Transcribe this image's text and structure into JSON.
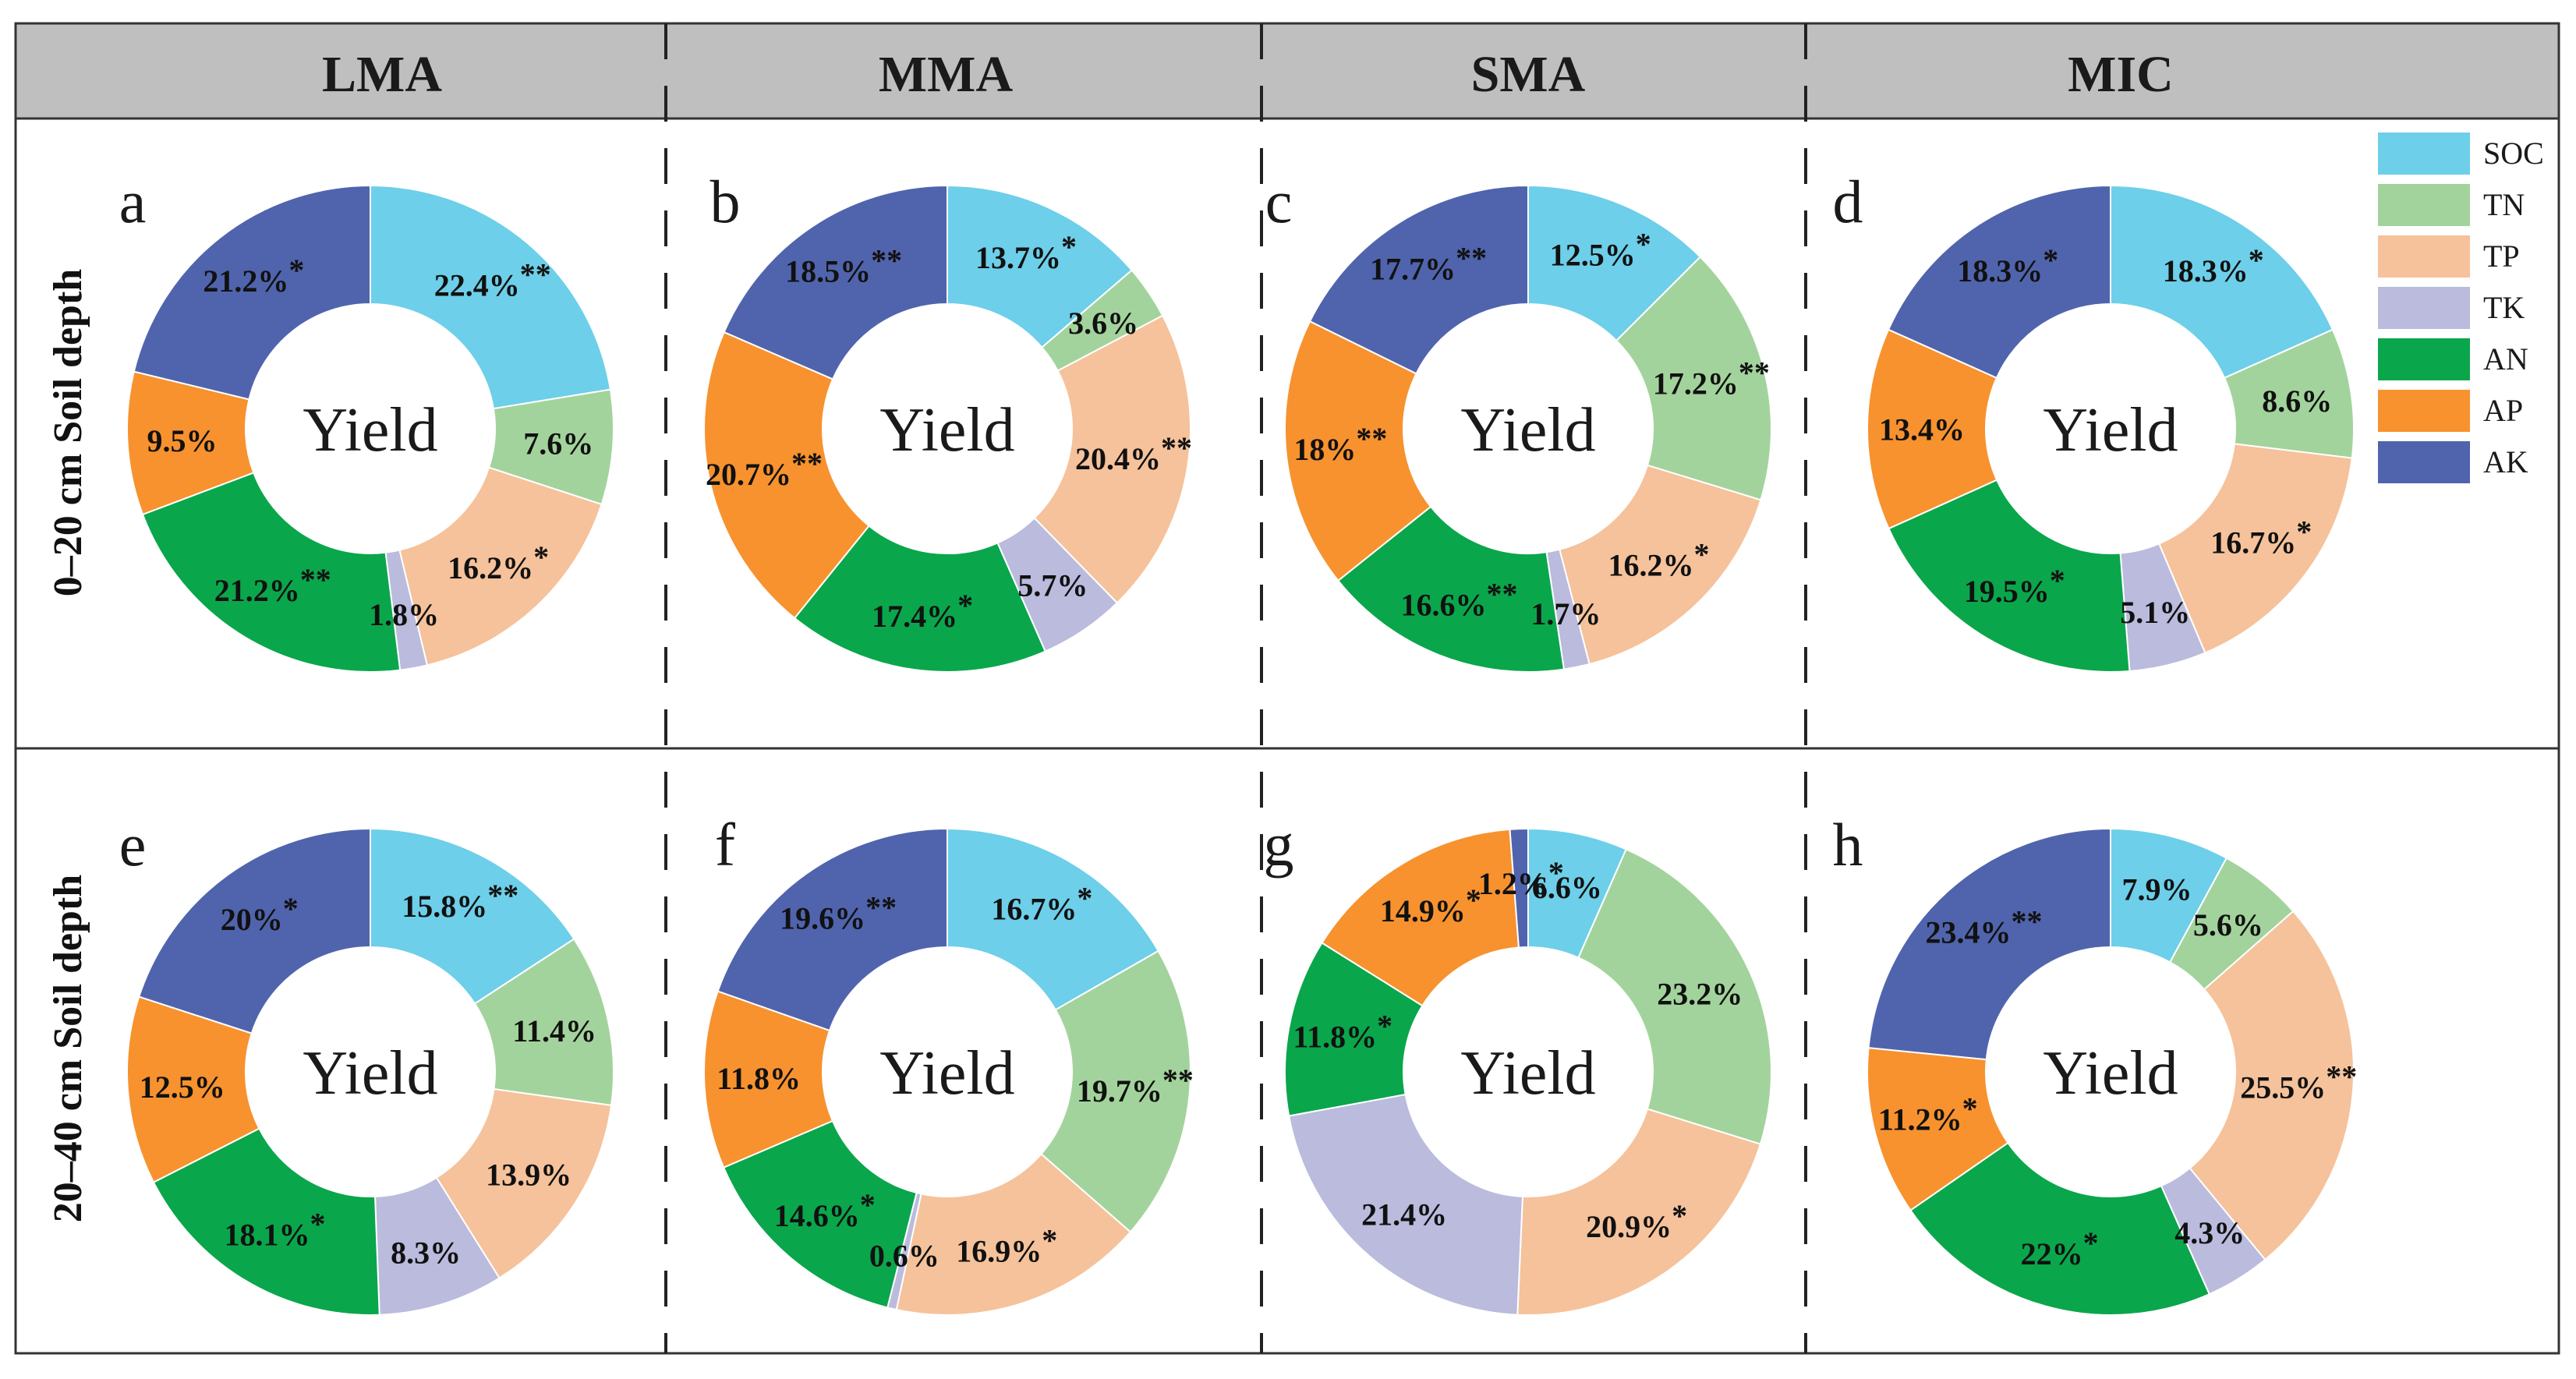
{
  "columns": [
    "LMA",
    "MMA",
    "SMA",
    "MIC"
  ],
  "row_labels": [
    "0–20 cm Soil depth",
    "20–40 cm Soil depth"
  ],
  "center_label": "Yield",
  "colors": {
    "SOC": "#6dcfe9",
    "TN": "#a3d39c",
    "TP": "#f5c29b",
    "TK": "#babbdd",
    "AN": "#0aa64b",
    "AP": "#f7922f",
    "AK": "#5064ad",
    "header_bg": "#bfbfbf"
  },
  "legend": [
    "SOC",
    "TN",
    "TP",
    "TK",
    "AN",
    "AP",
    "AK"
  ],
  "chart_data": [
    {
      "type": "pie",
      "panel": "a",
      "column": "LMA",
      "depth": "0–20 cm",
      "categories": [
        "SOC",
        "TN",
        "TP",
        "TK",
        "AN",
        "AP",
        "AK"
      ],
      "values": [
        22.4,
        7.6,
        16.2,
        1.8,
        21.2,
        9.5,
        21.2
      ],
      "labels": [
        "22.4%",
        "7.6%",
        "16.2%",
        "1.8%",
        "21.2%",
        "9.5%",
        "21.2%"
      ],
      "significance": [
        "**",
        "",
        "*",
        "",
        "**",
        "",
        "*"
      ]
    },
    {
      "type": "pie",
      "panel": "b",
      "column": "MMA",
      "depth": "0–20 cm",
      "categories": [
        "SOC",
        "TN",
        "TP",
        "TK",
        "AN",
        "AP",
        "AK"
      ],
      "values": [
        13.7,
        3.6,
        20.4,
        5.7,
        17.4,
        20.7,
        18.5
      ],
      "labels": [
        "13.7%",
        "3.6%",
        "20.4%",
        "5.7%",
        "17.4%",
        "20.7%",
        "18.5%"
      ],
      "significance": [
        "*",
        "",
        "**",
        "",
        "*",
        "**",
        "**"
      ]
    },
    {
      "type": "pie",
      "panel": "c",
      "column": "SMA",
      "depth": "0–20 cm",
      "categories": [
        "SOC",
        "TN",
        "TP",
        "TK",
        "AN",
        "AP",
        "AK"
      ],
      "values": [
        12.5,
        17.2,
        16.2,
        1.7,
        16.6,
        18,
        17.7
      ],
      "labels": [
        "12.5%",
        "17.2%",
        "16.2%",
        "1.7%",
        "16.6%",
        "18%",
        "17.7%"
      ],
      "significance": [
        "*",
        "**",
        "*",
        "",
        "**",
        "**",
        "**"
      ]
    },
    {
      "type": "pie",
      "panel": "d",
      "column": "MIC",
      "depth": "0–20 cm",
      "categories": [
        "SOC",
        "TN",
        "TP",
        "TK",
        "AN",
        "AP",
        "AK"
      ],
      "values": [
        18.3,
        8.6,
        16.7,
        5.1,
        19.5,
        13.4,
        18.3
      ],
      "labels": [
        "18.3%",
        "8.6%",
        "16.7%",
        "5.1%",
        "19.5%",
        "13.4%",
        "18.3%"
      ],
      "significance": [
        "*",
        "",
        "*",
        "",
        "*",
        "",
        "*"
      ]
    },
    {
      "type": "pie",
      "panel": "e",
      "column": "LMA",
      "depth": "20–40 cm",
      "categories": [
        "SOC",
        "TN",
        "TP",
        "TK",
        "AN",
        "AP",
        "AK"
      ],
      "values": [
        15.8,
        11.4,
        13.9,
        8.3,
        18.1,
        12.5,
        20
      ],
      "labels": [
        "15.8%",
        "11.4%",
        "13.9%",
        "8.3%",
        "18.1%",
        "12.5%",
        "20%"
      ],
      "significance": [
        "**",
        "",
        "",
        "",
        "*",
        "",
        "*"
      ]
    },
    {
      "type": "pie",
      "panel": "f",
      "column": "MMA",
      "depth": "20–40 cm",
      "categories": [
        "SOC",
        "TN",
        "TP",
        "TK",
        "AN",
        "AP",
        "AK"
      ],
      "values": [
        16.7,
        19.7,
        16.9,
        0.6,
        14.6,
        11.8,
        19.6
      ],
      "labels": [
        "16.7%",
        "19.7%",
        "16.9%",
        "0.6%",
        "14.6%",
        "11.8%",
        "19.6%"
      ],
      "significance": [
        "*",
        "**",
        "*",
        "",
        "*",
        "",
        "**"
      ]
    },
    {
      "type": "pie",
      "panel": "g",
      "column": "SMA",
      "depth": "20–40 cm",
      "categories": [
        "SOC",
        "TN",
        "TP",
        "TK",
        "AN",
        "AP",
        "AK"
      ],
      "values": [
        6.6,
        23.2,
        20.9,
        21.4,
        11.8,
        14.9,
        1.2
      ],
      "labels": [
        "6.6%",
        "23.2%",
        "20.9%",
        "21.4%",
        "11.8%",
        "14.9%",
        "1.2%"
      ],
      "significance": [
        "",
        "",
        "*",
        "",
        "*",
        "*",
        "*"
      ]
    },
    {
      "type": "pie",
      "panel": "h",
      "column": "MIC",
      "depth": "20–40 cm",
      "categories": [
        "SOC",
        "TN",
        "TP",
        "TK",
        "AN",
        "AP",
        "AK"
      ],
      "values": [
        7.9,
        5.6,
        25.5,
        4.3,
        22,
        11.2,
        23.4
      ],
      "labels": [
        "7.9%",
        "5.6%",
        "25.5%",
        "4.3%",
        "22%",
        "11.2%",
        "23.4%"
      ],
      "significance": [
        "",
        "",
        "**",
        "",
        "*",
        "*",
        "**"
      ]
    }
  ]
}
